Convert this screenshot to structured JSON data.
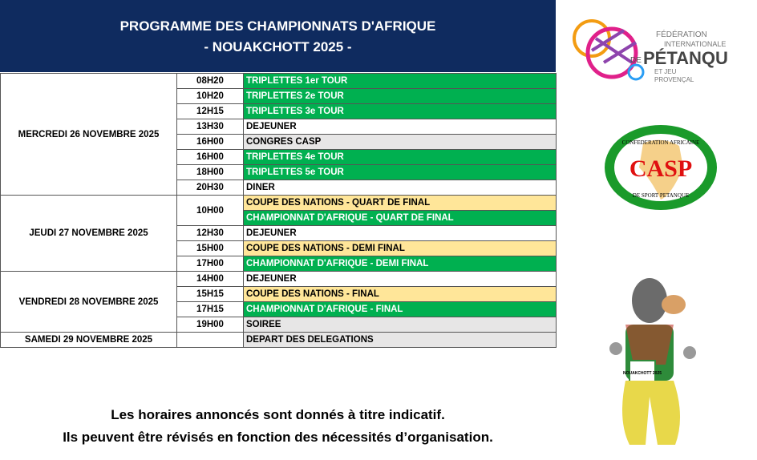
{
  "header": {
    "line1": "PROGRAMME DES CHAMPIONNATS D'AFRIQUE",
    "line2": "- NOUAKCHOTT 2025 -"
  },
  "colors": {
    "header": "#0f2b5f",
    "green": "#00b050",
    "yellow": "#ffe699",
    "grey": "#e7e6e6"
  },
  "days": [
    {
      "label": "MERCREDI 26 NOVEMBRE 2025",
      "rows": [
        {
          "time": "08H20",
          "event": "TRIPLETTES 1er TOUR",
          "style": "g"
        },
        {
          "time": "10H20",
          "event": "TRIPLETTES 2e TOUR",
          "style": "g"
        },
        {
          "time": "12H15",
          "event": "TRIPLETTES 3e TOUR",
          "style": "g"
        },
        {
          "time": "13H30",
          "event": "DEJEUNER",
          "style": "w"
        },
        {
          "time": "16H00",
          "event": "CONGRES CASP",
          "style": "l"
        },
        {
          "time": "16H00",
          "event": "TRIPLETTES 4e TOUR",
          "style": "g"
        },
        {
          "time": "18H00",
          "event": "TRIPLETTES 5e TOUR",
          "style": "g"
        },
        {
          "time": "20H30",
          "event": "DINER",
          "style": "w"
        }
      ]
    },
    {
      "label": "JEUDI 27 NOVEMBRE 2025",
      "rows": [
        {
          "time": "10H00",
          "event": "COUPE DES NATIONS - QUART DE FINAL",
          "style": "y",
          "span": 2
        },
        {
          "event": "CHAMPIONNAT D'AFRIQUE - QUART DE FINAL",
          "style": "g"
        },
        {
          "time": "12H30",
          "event": "DEJEUNER",
          "style": "w"
        },
        {
          "time": "15H00",
          "event": "COUPE DES NATIONS - DEMI FINAL",
          "style": "y"
        },
        {
          "time": "17H00",
          "event": "CHAMPIONNAT D'AFRIQUE - DEMI FINAL",
          "style": "g"
        }
      ]
    },
    {
      "label": "VENDREDI 28 NOVEMBRE 2025",
      "rows": [
        {
          "time": "14H00",
          "event": "DEJEUNER",
          "style": "w"
        },
        {
          "time": "15H15",
          "event": "COUPE DES NATIONS - FINAL",
          "style": "y"
        },
        {
          "time": "17H15",
          "event": "CHAMPIONNAT D'AFRIQUE - FINAL",
          "style": "g"
        },
        {
          "time": "19H00",
          "event": "SOIREE",
          "style": "l"
        }
      ]
    },
    {
      "label": "SAMEDI 29 NOVEMBRE 2025",
      "rows": [
        {
          "time": "",
          "event": "DEPART DES DELEGATIONS",
          "style": "l"
        }
      ]
    }
  ],
  "notes": {
    "line1": "Les horaires annoncés sont donnés à titre indicatif.",
    "line2": "Ils peuvent être révisés en fonction des nécessités d’organisation."
  },
  "logos": {
    "fipjp": {
      "l1": "FÉDÉRATION",
      "l2": "INTERNATIONALE",
      "de": "DE",
      "main": "PÉTANQUE",
      "l3": "ET JEU",
      "l4": "PROVENÇAL"
    },
    "casp": {
      "main": "CASP",
      "top": "CONFEDERATION AFRICAINE",
      "bottom": "DE SPORT PETANQUE"
    },
    "mascot": {
      "banner": "NOUAKCHOTT 2025"
    }
  }
}
